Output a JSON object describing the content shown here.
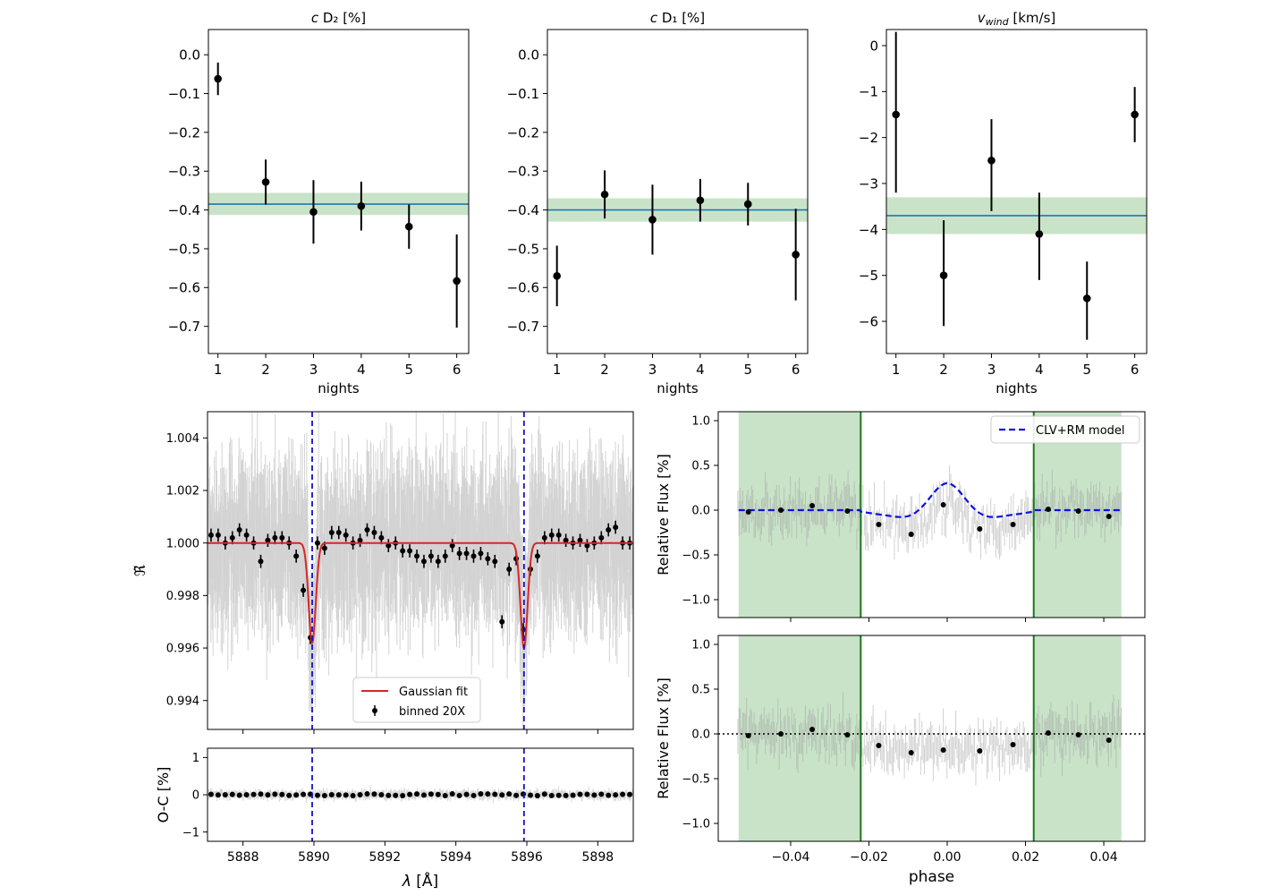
{
  "colors": {
    "band": "#c9e3c9",
    "mean_line": "#1f77b4",
    "fit": "#d62728",
    "model": "#1010e0",
    "dashed_v": "#1010d0",
    "green_line": "#1a7a1a",
    "binned": "#000000",
    "raw": "#b0b0b0"
  },
  "chart_data": [
    {
      "id": "cD2",
      "type": "scatter",
      "title": "c D₂ [%]",
      "title_italic": "c",
      "title_rest": " D₂ [%]",
      "xlabel": "nights",
      "ylabel": "",
      "x": [
        1,
        2,
        3,
        4,
        5,
        6
      ],
      "y": [
        -0.062,
        -0.328,
        -0.405,
        -0.39,
        -0.443,
        -0.583
      ],
      "yerr": [
        0.042,
        0.058,
        0.082,
        0.063,
        0.057,
        0.12
      ],
      "mean": -0.385,
      "band": [
        -0.413,
        -0.356
      ],
      "xlim": [
        0.8,
        6.25
      ],
      "ylim": [
        -0.77,
        0.065
      ],
      "xticks": [
        1,
        2,
        3,
        4,
        5,
        6
      ],
      "yticks": [
        0.0,
        -0.1,
        -0.2,
        -0.3,
        -0.4,
        -0.5,
        -0.6,
        -0.7
      ],
      "ytick_labels": [
        "0.0",
        "−0.1",
        "−0.2",
        "−0.3",
        "−0.4",
        "−0.5",
        "−0.6",
        "−0.7"
      ]
    },
    {
      "id": "cD1",
      "type": "scatter",
      "title": "c D₁ [%]",
      "title_italic": "c",
      "title_rest": " D₁ [%]",
      "xlabel": "nights",
      "ylabel": "",
      "x": [
        1,
        2,
        3,
        4,
        5,
        6
      ],
      "y": [
        -0.57,
        -0.36,
        -0.425,
        -0.375,
        -0.385,
        -0.515
      ],
      "yerr": [
        0.078,
        0.062,
        0.09,
        0.055,
        0.055,
        0.118
      ],
      "mean": -0.4,
      "band": [
        -0.43,
        -0.37
      ],
      "xlim": [
        0.8,
        6.25
      ],
      "ylim": [
        -0.77,
        0.065
      ],
      "xticks": [
        1,
        2,
        3,
        4,
        5,
        6
      ],
      "yticks": [
        0.0,
        -0.1,
        -0.2,
        -0.3,
        -0.4,
        -0.5,
        -0.6,
        -0.7
      ],
      "ytick_labels": [
        "0.0",
        "−0.1",
        "−0.2",
        "−0.3",
        "−0.4",
        "−0.5",
        "−0.6",
        "−0.7"
      ]
    },
    {
      "id": "vwind",
      "type": "scatter",
      "title": "v_wind [km/s]",
      "title_italic": "v",
      "title_sub": "wind",
      "title_rest": " [km/s]",
      "xlabel": "nights",
      "ylabel": "",
      "x": [
        1,
        2,
        3,
        4,
        5,
        6
      ],
      "y": [
        -1.5,
        -5.0,
        -2.5,
        -4.1,
        -5.5,
        -1.5
      ],
      "yerr_low": [
        1.7,
        1.1,
        1.1,
        1.0,
        0.9,
        0.6
      ],
      "yerr_high": [
        1.8,
        1.2,
        0.9,
        0.9,
        0.8,
        0.6
      ],
      "mean": -3.7,
      "band": [
        -4.1,
        -3.3
      ],
      "xlim": [
        0.8,
        6.25
      ],
      "ylim": [
        -6.7,
        0.35
      ],
      "xticks": [
        1,
        2,
        3,
        4,
        5,
        6
      ],
      "yticks": [
        0,
        -1,
        -2,
        -3,
        -4,
        -5,
        -6
      ],
      "ytick_labels": [
        "0",
        "−1",
        "−2",
        "−3",
        "−4",
        "−5",
        "−6"
      ]
    },
    {
      "id": "spectrum",
      "type": "scatter",
      "title": "",
      "xlabel": "",
      "ylabel": "ℜ̃",
      "xlim": [
        5887.0,
        5899.0
      ],
      "ylim": [
        0.9929,
        1.005
      ],
      "yticks": [
        0.994,
        0.996,
        0.998,
        1.0,
        1.002,
        1.004
      ],
      "ytick_labels": [
        "0.994",
        "0.996",
        "0.998",
        "1.000",
        "1.002",
        "1.004"
      ],
      "xticks": [
        5888,
        5890,
        5892,
        5894,
        5896,
        5898
      ],
      "line_centers": [
        5889.95,
        5895.92
      ],
      "fit": {
        "continuum": 1.0,
        "depths": [
          0.0038,
          0.004
        ],
        "sigma": 0.1
      },
      "binned_x": [
        5887.1,
        5887.3,
        5887.5,
        5887.7,
        5887.9,
        5888.1,
        5888.3,
        5888.5,
        5888.7,
        5888.9,
        5889.1,
        5889.3,
        5889.5,
        5889.7,
        5889.9,
        5890.1,
        5890.3,
        5890.5,
        5890.7,
        5890.9,
        5891.1,
        5891.3,
        5891.5,
        5891.7,
        5891.9,
        5892.1,
        5892.3,
        5892.5,
        5892.7,
        5892.9,
        5893.1,
        5893.3,
        5893.5,
        5893.7,
        5893.9,
        5894.1,
        5894.3,
        5894.5,
        5894.7,
        5894.9,
        5895.1,
        5895.3,
        5895.5,
        5895.7,
        5895.9,
        5896.1,
        5896.3,
        5896.5,
        5896.7,
        5896.9,
        5897.1,
        5897.3,
        5897.5,
        5897.7,
        5897.9,
        5898.1,
        5898.3,
        5898.5,
        5898.7,
        5898.9
      ],
      "binned_y": [
        1.0003,
        1.0003,
        1.0,
        1.0002,
        1.0005,
        1.0003,
        1.0,
        0.9993,
        1.0001,
        1.0002,
        1.0002,
        1.0,
        0.9995,
        0.9982,
        0.9964,
        1.0,
        0.9998,
        1.0004,
        1.0004,
        1.0003,
        1.0,
        1.0001,
        1.0005,
        1.0004,
        1.0002,
        0.9999,
        1.0,
        0.9997,
        0.9997,
        0.9995,
        0.9993,
        0.9995,
        0.9993,
        0.9995,
        0.9999,
        0.9996,
        0.9996,
        0.9995,
        0.9996,
        0.9994,
        0.9993,
        0.997,
        0.999,
        0.9994,
        0.9967,
        0.999,
        0.9995,
        1.0002,
        1.0003,
        1.0003,
        1.0001,
        1.0,
        1.0001,
        0.9999,
        1.0,
        1.0002,
        1.0005,
        1.0006,
        1.0,
        1.0
      ],
      "legend": {
        "fit_label": "Gaussian fit",
        "binned_label": "binned 20X",
        "placement": "lower-center"
      }
    },
    {
      "id": "residuals",
      "type": "scatter",
      "title": "",
      "xlabel": "λ [Å]",
      "xlabel_italic": "λ",
      "xlabel_rest": " [Å]",
      "ylabel": "O-C [%]",
      "xlim": [
        5887.0,
        5899.0
      ],
      "ylim": [
        -1.25,
        1.25
      ],
      "yticks": [
        -1,
        0,
        1
      ],
      "ytick_labels": [
        "−1",
        "0",
        "1"
      ],
      "xticks": [
        5888,
        5890,
        5892,
        5894,
        5896,
        5898
      ],
      "xtick_labels": [
        "5888",
        "5890",
        "5892",
        "5894",
        "5896",
        "5898"
      ]
    },
    {
      "id": "lightcurve_model",
      "type": "scatter",
      "title": "",
      "xlabel": "",
      "ylabel": "Relative Flux [%]",
      "xlim": [
        -0.0585,
        0.0505
      ],
      "ylim": [
        -1.2,
        1.1
      ],
      "yticks": [
        1.0,
        0.5,
        0.0,
        -0.5,
        -1.0
      ],
      "ytick_labels": [
        "1.0",
        "0.5",
        "0.0",
        "−0.5",
        "−1.0"
      ],
      "xticks": [
        -0.04,
        -0.02,
        0.0,
        0.02,
        0.04
      ],
      "out_of_transit": [
        [
          -0.0533,
          -0.0221
        ],
        [
          0.0221,
          0.0445
        ]
      ],
      "contacts": [
        -0.0221,
        0.0221
      ],
      "binned_x": [
        -0.0508,
        -0.0425,
        -0.0345,
        -0.0255,
        -0.0175,
        -0.0092,
        -0.001,
        0.0083,
        0.0168,
        0.0258,
        0.0335,
        0.0413
      ],
      "binned_y": [
        -0.02,
        0.0,
        0.05,
        -0.01,
        -0.16,
        -0.27,
        0.06,
        -0.21,
        -0.16,
        0.01,
        -0.01,
        -0.07
      ],
      "model_label": "CLV+RM model",
      "legend_placement": "top-right"
    },
    {
      "id": "lightcurve_residual",
      "type": "scatter",
      "title": "",
      "xlabel": "phase",
      "ylabel": "Relative Flux [%]",
      "xlim": [
        -0.0585,
        0.0505
      ],
      "ylim": [
        -1.2,
        1.1
      ],
      "yticks": [
        1.0,
        0.5,
        0.0,
        -0.5,
        -1.0
      ],
      "ytick_labels": [
        "1.0",
        "0.5",
        "0.0",
        "−0.5",
        "−1.0"
      ],
      "xticks": [
        -0.04,
        -0.02,
        0.0,
        0.02,
        0.04
      ],
      "xtick_labels": [
        "−0.04",
        "−0.02",
        "0.00",
        "0.02",
        "0.04"
      ],
      "out_of_transit": [
        [
          -0.0533,
          -0.0221
        ],
        [
          0.0221,
          0.0445
        ]
      ],
      "contacts": [
        -0.0221,
        0.0221
      ],
      "binned_x": [
        -0.0508,
        -0.0425,
        -0.0345,
        -0.0255,
        -0.0175,
        -0.0092,
        -0.001,
        0.0083,
        0.0168,
        0.0258,
        0.0335,
        0.0413
      ],
      "binned_y": [
        -0.02,
        0.0,
        0.05,
        -0.01,
        -0.13,
        -0.21,
        -0.18,
        -0.19,
        -0.12,
        0.01,
        -0.01,
        -0.07
      ],
      "zero_line": 0.0
    }
  ]
}
